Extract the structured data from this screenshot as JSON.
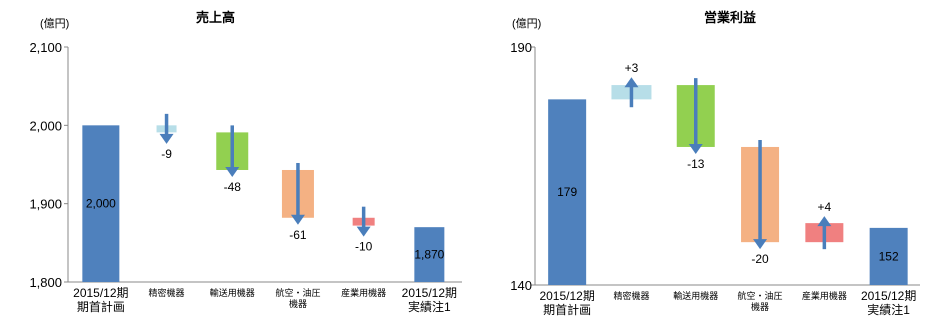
{
  "chart_data": [
    {
      "type": "bar",
      "subtype": "waterfall",
      "title": "売上高",
      "unit_label": "(億円)",
      "ylim": [
        1800,
        2100
      ],
      "yticks": [
        1800,
        1900,
        2000,
        2100
      ],
      "ytick_labels": [
        "1,800",
        "1,900",
        "2,000",
        "2,100"
      ],
      "categories": [
        [
          "2015/12期",
          "期首計画"
        ],
        [
          "精密機器"
        ],
        [
          "輸送用機器"
        ],
        [
          "航空・油圧",
          "機器"
        ],
        [
          "産業用機器"
        ],
        [
          "2015/12期",
          "実績注1"
        ]
      ],
      "values": [
        2000,
        -9,
        -48,
        -61,
        -10,
        1870
      ],
      "value_labels": [
        "2,000",
        "-9",
        "-48",
        "-61",
        "-10",
        "1,870"
      ],
      "colors": [
        "#4f81bd",
        "#b7dee8",
        "#92d050",
        "#f4b183",
        "#f08080",
        "#4f81bd"
      ],
      "arrow_color": "#4a7ebb"
    },
    {
      "type": "bar",
      "subtype": "waterfall",
      "title": "営業利益",
      "unit_label": "(億円)",
      "ylim": [
        140,
        190
      ],
      "yticks": [
        140,
        190
      ],
      "ytick_labels": [
        "140",
        "190"
      ],
      "categories": [
        [
          "2015/12期",
          "期首計画"
        ],
        [
          "精密機器"
        ],
        [
          "輸送用機器"
        ],
        [
          "航空・油圧",
          "機器"
        ],
        [
          "産業用機器"
        ],
        [
          "2015/12期",
          "実績注1"
        ]
      ],
      "values": [
        179,
        3,
        -13,
        -20,
        4,
        152
      ],
      "value_labels": [
        "179",
        "+3",
        "-13",
        "-20",
        "+4",
        "152"
      ],
      "colors": [
        "#4f81bd",
        "#b7dee8",
        "#92d050",
        "#f4b183",
        "#f08080",
        "#4f81bd"
      ],
      "arrow_color": "#4a7ebb"
    }
  ]
}
